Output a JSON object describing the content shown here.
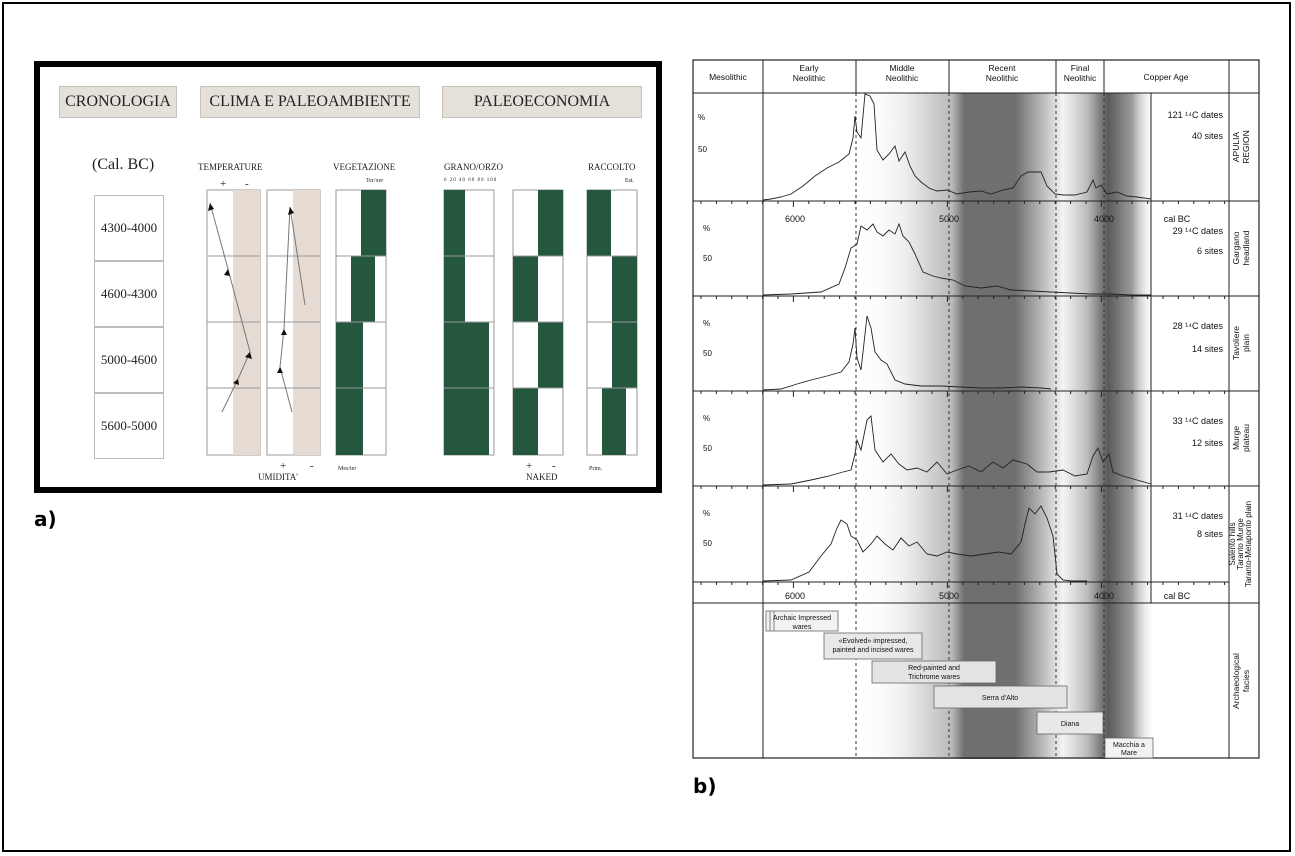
{
  "panel_a": {
    "letter": "a)",
    "headers": {
      "chronology": "CRONOLOGIA",
      "climate": "CLIMA E PALEOAMBIENTE",
      "economy": "PALEOECONOMIA"
    },
    "cal_bc_label": "(Cal. BC)",
    "periods": [
      "4300-4000",
      "4600-4300",
      "5000-4600",
      "5600-5000"
    ],
    "temperature": {
      "label": "TEMPERATURE",
      "plus": "+",
      "minus": "-"
    },
    "humidity": {
      "label": "UMIDITA'",
      "plus": "+",
      "minus": "-"
    },
    "vegetation": {
      "label": "VEGETAZIONE",
      "top": "Ter/xer",
      "bottom": "Mes/ter"
    },
    "grain": {
      "label": "GRANO/ORZO",
      "scale": "0 20 40 60 80 100"
    },
    "naked": {
      "label": "NAKED",
      "plus": "+",
      "minus": "-"
    },
    "harvest": {
      "label": "RACCOLTO",
      "top": "Est.",
      "bottom": "Prim."
    },
    "colors": {
      "green": "#25573f",
      "beige": "#e5dbd3",
      "header_bg": "#e6e0da"
    }
  },
  "panel_b": {
    "letter": "b)",
    "periods": [
      {
        "label": "Mesolithic"
      },
      {
        "label": "Early Neolithic"
      },
      {
        "label": "Middle Neolithic"
      },
      {
        "label": "Recent Neolithic"
      },
      {
        "label": "Final Neolithic"
      },
      {
        "label": "Copper Age"
      }
    ],
    "axis": {
      "unit": "cal BC",
      "ticks": [
        "6000",
        "5000",
        "4000"
      ]
    },
    "y_axis": {
      "percent": "%",
      "tick": "50"
    },
    "regions": [
      {
        "name": "APULIA REGION",
        "dates": "121 ¹⁴C dates",
        "sites": "40 sites"
      },
      {
        "name": "Gargano headland",
        "dates": "29 ¹⁴C dates",
        "sites": "6 sites"
      },
      {
        "name": "Tavoliere plain",
        "dates": "28 ¹⁴C dates",
        "sites": "14 sites"
      },
      {
        "name": "Murge plateau",
        "dates": "33 ¹⁴C dates",
        "sites": "12 sites"
      },
      {
        "name": "Salento hills Taranto Murge Taranto-Metaponto plain",
        "dates": "31 ¹⁴C dates",
        "sites": "8 sites"
      }
    ],
    "facies_title": "Archaeological facies",
    "facies": [
      {
        "label": "Archaic Impressed wares"
      },
      {
        "label": "«Evolved» impressed, painted and incised wares"
      },
      {
        "label": "Red-painted and Trichrome wares"
      },
      {
        "label": "Serra d'Alto"
      },
      {
        "label": "Diana"
      },
      {
        "label": "Macchia a Mare"
      }
    ]
  }
}
